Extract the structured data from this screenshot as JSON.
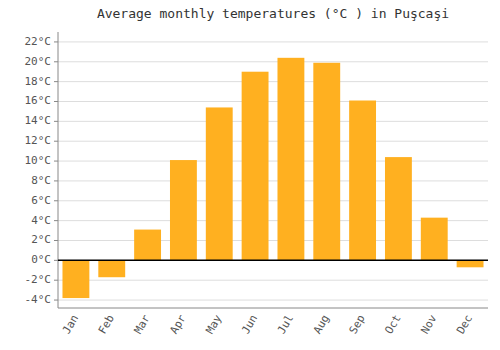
{
  "chart_data": {
    "type": "bar",
    "title": "Average monthly temperatures (°C ) in Puşcaşi",
    "categories": [
      "Jan",
      "Feb",
      "Mar",
      "Apr",
      "May",
      "Jun",
      "Jul",
      "Aug",
      "Sep",
      "Oct",
      "Nov",
      "Dec"
    ],
    "values": [
      -3.8,
      -1.7,
      3.1,
      10.1,
      15.4,
      19.0,
      20.4,
      19.9,
      16.1,
      10.4,
      4.3,
      -0.7
    ],
    "color": "#FFB020",
    "ylim": [
      -4.8,
      23.0
    ],
    "yticks": [
      {
        "value": -4,
        "label": "-4°C"
      },
      {
        "value": -2,
        "label": "-2°C"
      },
      {
        "value": 0,
        "label": "0°C"
      },
      {
        "value": 2,
        "label": "2°C"
      },
      {
        "value": 4,
        "label": "4°C"
      },
      {
        "value": 6,
        "label": "6°C"
      },
      {
        "value": 8,
        "label": "8°C"
      },
      {
        "value": 10,
        "label": "10°C"
      },
      {
        "value": 12,
        "label": "12°C"
      },
      {
        "value": 14,
        "label": "14°C"
      },
      {
        "value": 16,
        "label": "16°C"
      },
      {
        "value": 18,
        "label": "18°C"
      },
      {
        "value": 20,
        "label": "20°C"
      },
      {
        "value": 22,
        "label": "22°C"
      }
    ],
    "grid": true
  }
}
